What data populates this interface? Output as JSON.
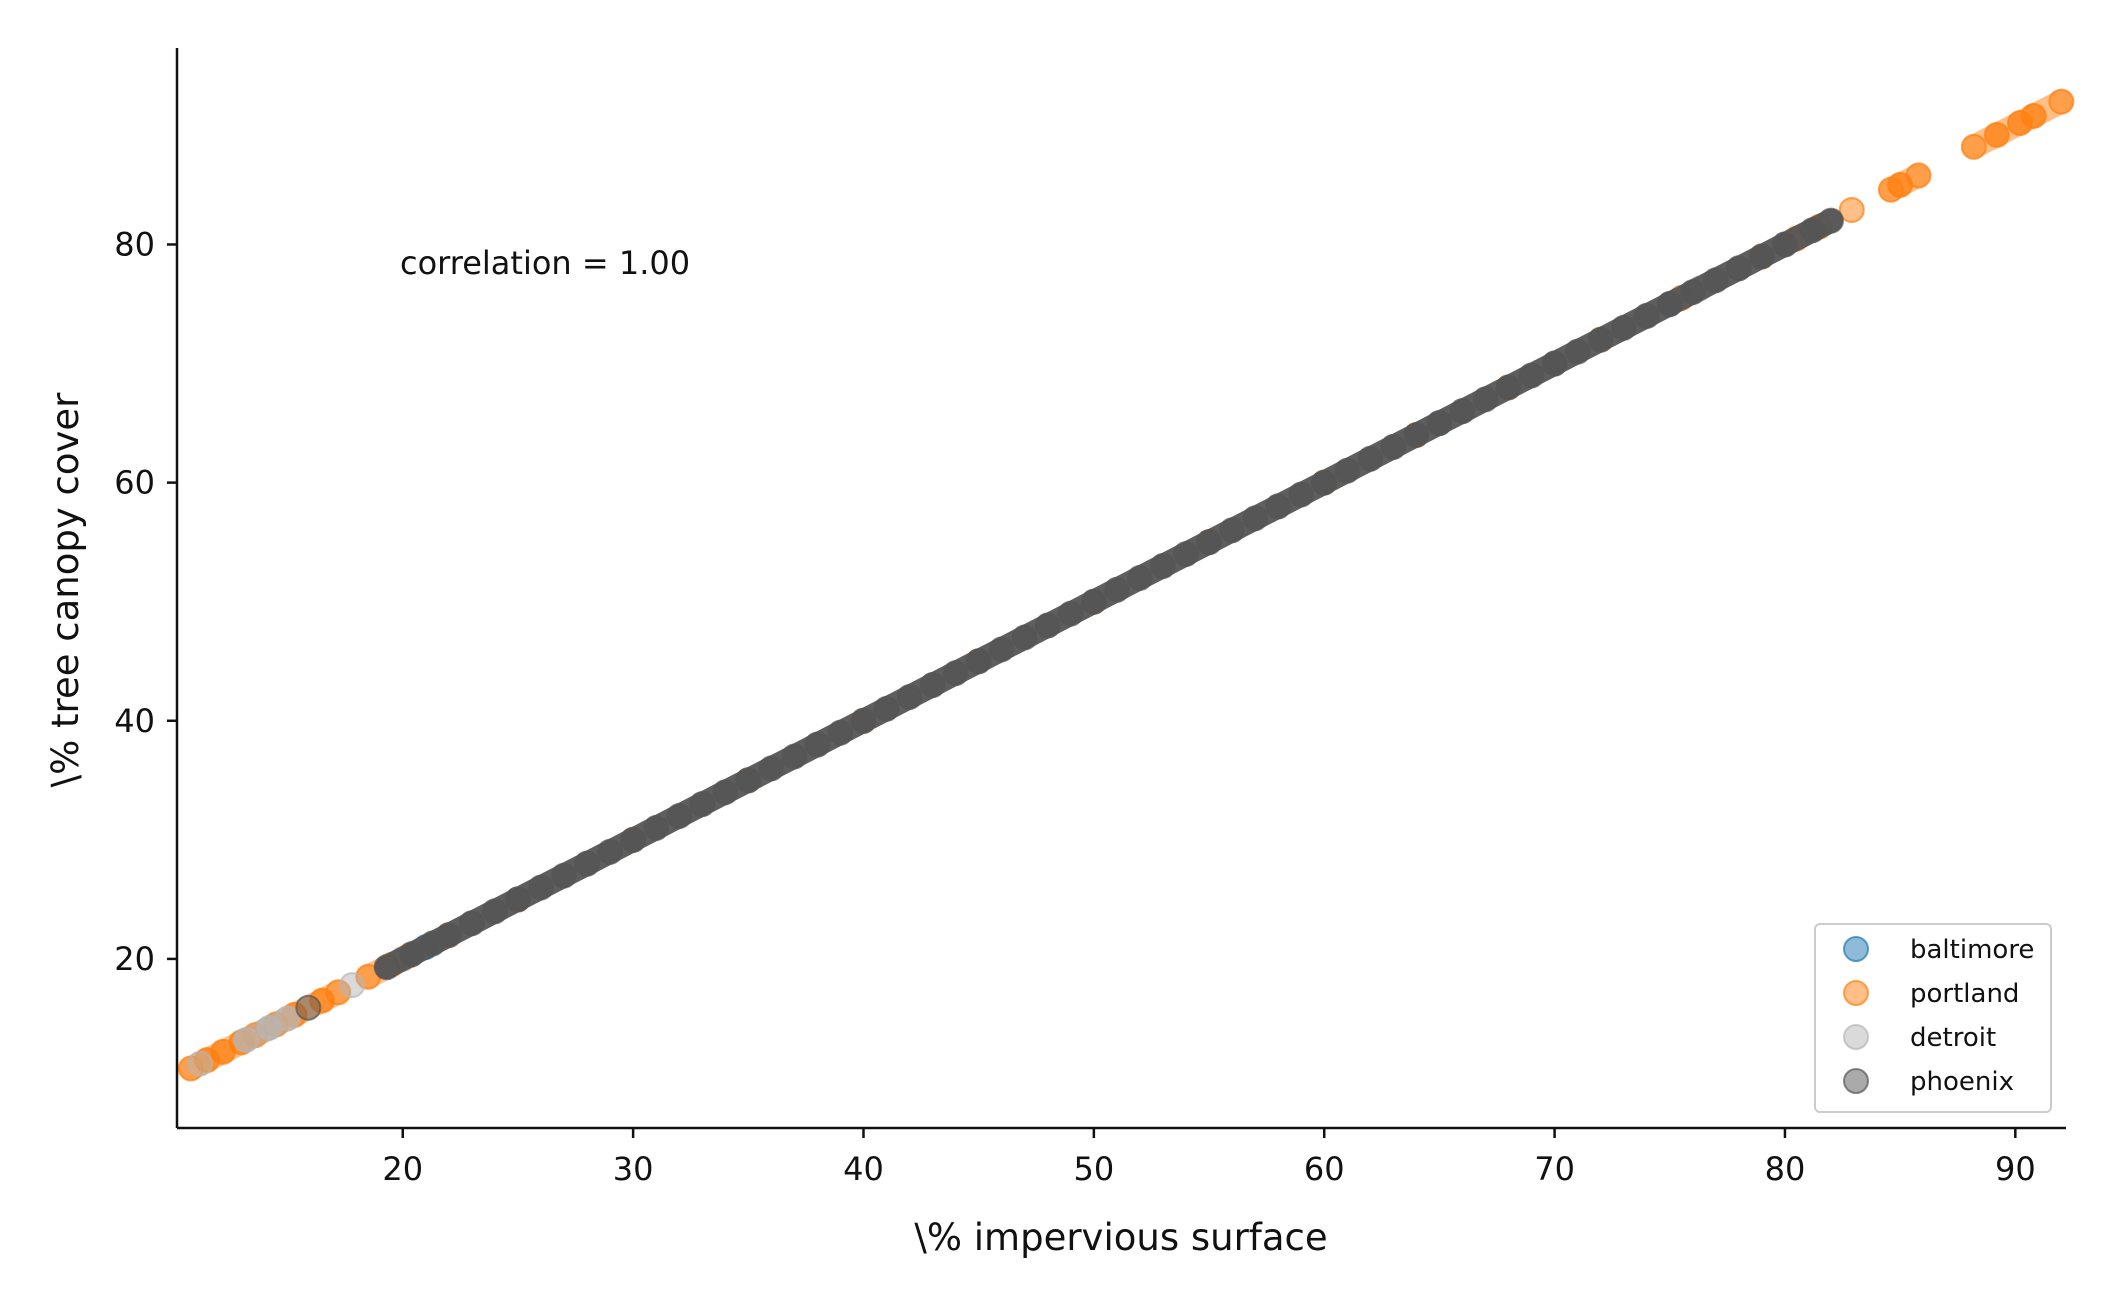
{
  "chart_data": {
    "type": "scatter",
    "title": "",
    "xlabel": "\\% impervious surface",
    "ylabel": "\\% tree canopy cover",
    "xlim": [
      10.2,
      92.2
    ],
    "ylim": [
      5.8,
      96.5
    ],
    "xticks": [
      20,
      30,
      40,
      50,
      60,
      70,
      80,
      90
    ],
    "yticks": [
      20,
      40,
      60,
      80
    ],
    "grid": false,
    "legend_position": "lower-right",
    "annotation": "correlation = 1.00",
    "series": [
      {
        "name": "baltimore",
        "color": "#1f77b4",
        "points": [
          [
            21,
            21
          ],
          [
            25,
            25
          ],
          [
            30,
            30
          ],
          [
            35,
            35
          ],
          [
            40,
            40
          ],
          [
            45,
            45
          ],
          [
            50,
            50
          ],
          [
            55,
            55
          ],
          [
            60,
            60
          ],
          [
            65,
            65
          ],
          [
            70,
            70
          ],
          [
            75,
            75
          ],
          [
            80,
            80
          ]
        ]
      },
      {
        "name": "portland",
        "color": "#ff7f0e",
        "points": [
          [
            10.8,
            10.8
          ],
          [
            11.5,
            11.5
          ],
          [
            12.2,
            12.2
          ],
          [
            13,
            13
          ],
          [
            13.6,
            13.6
          ],
          [
            14.5,
            14.5
          ],
          [
            15.3,
            15.3
          ],
          [
            16.5,
            16.5
          ],
          [
            17.2,
            17.2
          ],
          [
            18.5,
            18.5
          ],
          [
            19.5,
            19.5
          ],
          [
            20.3,
            20.3
          ],
          [
            22,
            22
          ],
          [
            25,
            25
          ],
          [
            30,
            30
          ],
          [
            35,
            35
          ],
          [
            40,
            40
          ],
          [
            45,
            45
          ],
          [
            50,
            50
          ],
          [
            55,
            55
          ],
          [
            60,
            60
          ],
          [
            64,
            64
          ],
          [
            68,
            68
          ],
          [
            72,
            72
          ],
          [
            75.5,
            75.5
          ],
          [
            79,
            79
          ],
          [
            80.5,
            80.5
          ],
          [
            81.5,
            81.5
          ],
          [
            82.9,
            82.9
          ],
          [
            84.6,
            84.6
          ],
          [
            85,
            85
          ],
          [
            85.8,
            85.8
          ],
          [
            88.2,
            88.2
          ],
          [
            89.2,
            89.2
          ],
          [
            90.2,
            90.2
          ],
          [
            90.8,
            90.8
          ],
          [
            92,
            92
          ]
        ]
      },
      {
        "name": "detroit",
        "color": "#b5b5b5",
        "points": [
          [
            11.2,
            11.2
          ],
          [
            13.2,
            13.2
          ],
          [
            14.2,
            14.2
          ],
          [
            15,
            15
          ],
          [
            17.8,
            17.8
          ],
          [
            20,
            20
          ],
          [
            23,
            23
          ],
          [
            28,
            28
          ],
          [
            33,
            33
          ],
          [
            38,
            38
          ],
          [
            43,
            43
          ],
          [
            48,
            48
          ],
          [
            53,
            53
          ],
          [
            58,
            58
          ],
          [
            63,
            63
          ],
          [
            66,
            66
          ],
          [
            70,
            70
          ],
          [
            74,
            74
          ],
          [
            76.3,
            76.3
          ],
          [
            78,
            78
          ],
          [
            80,
            80
          ]
        ]
      },
      {
        "name": "phoenix",
        "color": "#555555",
        "points": [
          [
            15.9,
            15.9
          ],
          [
            19.3,
            19.3
          ],
          [
            20.4,
            20.4
          ],
          [
            21.3,
            21.3
          ],
          [
            22,
            22
          ],
          [
            23,
            23
          ],
          [
            24,
            24
          ],
          [
            25,
            25
          ],
          [
            26,
            26
          ],
          [
            27,
            27
          ],
          [
            28,
            28
          ],
          [
            29,
            29
          ],
          [
            30,
            30
          ],
          [
            31,
            31
          ],
          [
            32,
            32
          ],
          [
            33,
            33
          ],
          [
            34,
            34
          ],
          [
            35,
            35
          ],
          [
            36,
            36
          ],
          [
            37,
            37
          ],
          [
            38,
            38
          ],
          [
            39,
            39
          ],
          [
            40,
            40
          ],
          [
            41,
            41
          ],
          [
            42,
            42
          ],
          [
            43,
            43
          ],
          [
            44,
            44
          ],
          [
            45,
            45
          ],
          [
            46,
            46
          ],
          [
            47,
            47
          ],
          [
            48,
            48
          ],
          [
            49,
            49
          ],
          [
            50,
            50
          ],
          [
            51,
            51
          ],
          [
            52,
            52
          ],
          [
            53,
            53
          ],
          [
            54,
            54
          ],
          [
            55,
            55
          ],
          [
            56,
            56
          ],
          [
            57,
            57
          ],
          [
            58,
            58
          ],
          [
            59,
            59
          ],
          [
            60,
            60
          ],
          [
            61,
            61
          ],
          [
            62,
            62
          ],
          [
            63,
            63
          ],
          [
            64,
            64
          ],
          [
            65,
            65
          ],
          [
            66,
            66
          ],
          [
            67,
            67
          ],
          [
            68,
            68
          ],
          [
            69,
            69
          ],
          [
            70,
            70
          ],
          [
            71,
            71
          ],
          [
            72,
            72
          ],
          [
            73,
            73
          ],
          [
            74,
            74
          ],
          [
            75,
            75
          ],
          [
            76,
            76
          ],
          [
            77,
            77
          ],
          [
            78,
            78
          ],
          [
            79,
            79
          ],
          [
            80,
            80
          ],
          [
            81.2,
            81.2
          ],
          [
            82,
            82
          ]
        ]
      }
    ]
  }
}
